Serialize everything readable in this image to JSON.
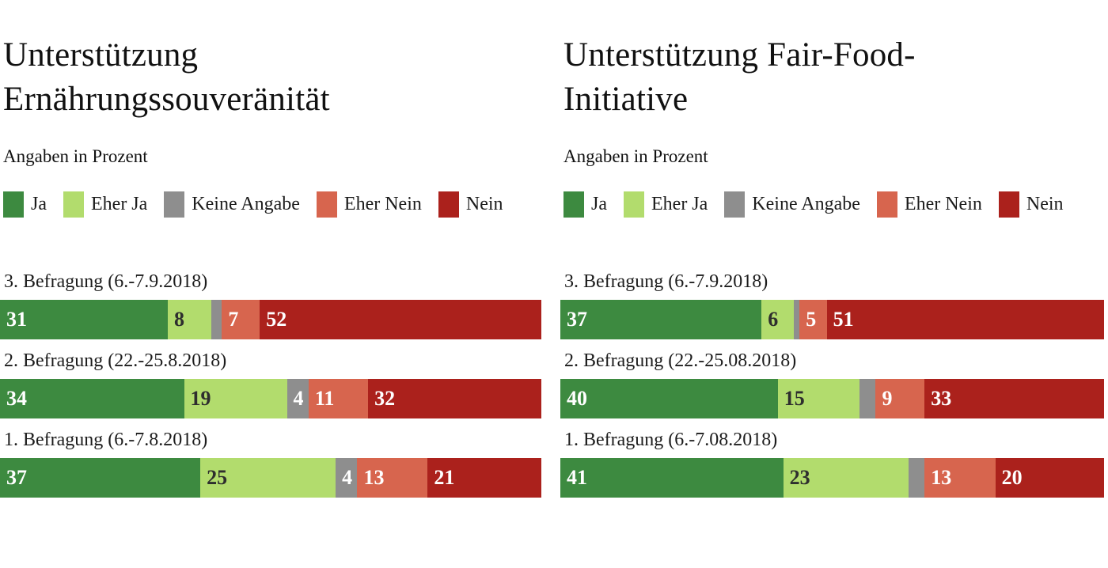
{
  "page": {
    "background": "#ffffff"
  },
  "chart_data": [
    {
      "type": "bar",
      "variant": "horizontal-stacked",
      "title": "Unterstützung Ernährungssouveränität",
      "title_lines": [
        "Unterstützung",
        "Ernährungssouveränität"
      ],
      "subtitle": "Angaben in Prozent",
      "unit": "percent",
      "xlim": [
        0,
        100
      ],
      "grid": false,
      "legend_position": "top",
      "legend": [
        "Ja",
        "Eher Ja",
        "Keine Angabe",
        "Eher Nein",
        "Nein"
      ],
      "colors": [
        "#3d8a40",
        "#b2dc6d",
        "#8e8e8e",
        "#d7654e",
        "#ab211c"
      ],
      "value_text_colors": [
        "#ffffff",
        "#2e2e2e",
        "#ffffff",
        "#ffffff",
        "#ffffff"
      ],
      "rows": [
        {
          "label": "3. Befragung (6.-7.9.2018)",
          "values": [
            31,
            8,
            2,
            7,
            52
          ],
          "value_labels": [
            "31",
            "8",
            "",
            "7",
            "52"
          ]
        },
        {
          "label": "2. Befragung (22.-25.8.2018)",
          "values": [
            34,
            19,
            4,
            11,
            32
          ],
          "value_labels": [
            "34",
            "19",
            "4",
            "11",
            "32"
          ]
        },
        {
          "label": "1. Befragung (6.-7.8.2018)",
          "values": [
            37,
            25,
            4,
            13,
            21
          ],
          "value_labels": [
            "37",
            "25",
            "4",
            "13",
            "21"
          ]
        }
      ]
    },
    {
      "type": "bar",
      "variant": "horizontal-stacked",
      "title": "Unterstützung Fair-Food-Initiative",
      "title_lines": [
        "Unterstützung Fair-Food-",
        "Initiative"
      ],
      "subtitle": "Angaben in Prozent",
      "unit": "percent",
      "xlim": [
        0,
        100
      ],
      "grid": false,
      "legend_position": "top",
      "legend": [
        "Ja",
        "Eher Ja",
        "Keine Angabe",
        "Eher Nein",
        "Nein"
      ],
      "colors": [
        "#3d8a40",
        "#b2dc6d",
        "#8e8e8e",
        "#d7654e",
        "#ab211c"
      ],
      "value_text_colors": [
        "#ffffff",
        "#2e2e2e",
        "#ffffff",
        "#ffffff",
        "#ffffff"
      ],
      "rows": [
        {
          "label": "3. Befragung (6.-7.9.2018)",
          "values": [
            37,
            6,
            1,
            5,
            51
          ],
          "value_labels": [
            "37",
            "6",
            "",
            "5",
            "51"
          ]
        },
        {
          "label": "2. Befragung (22.-25.08.2018)",
          "values": [
            40,
            15,
            3,
            9,
            33
          ],
          "value_labels": [
            "40",
            "15",
            "",
            "9",
            "33"
          ]
        },
        {
          "label": "1. Befragung (6.-7.08.2018)",
          "values": [
            41,
            23,
            3,
            13,
            20
          ],
          "value_labels": [
            "41",
            "23",
            "",
            "13",
            "20"
          ]
        }
      ]
    }
  ]
}
